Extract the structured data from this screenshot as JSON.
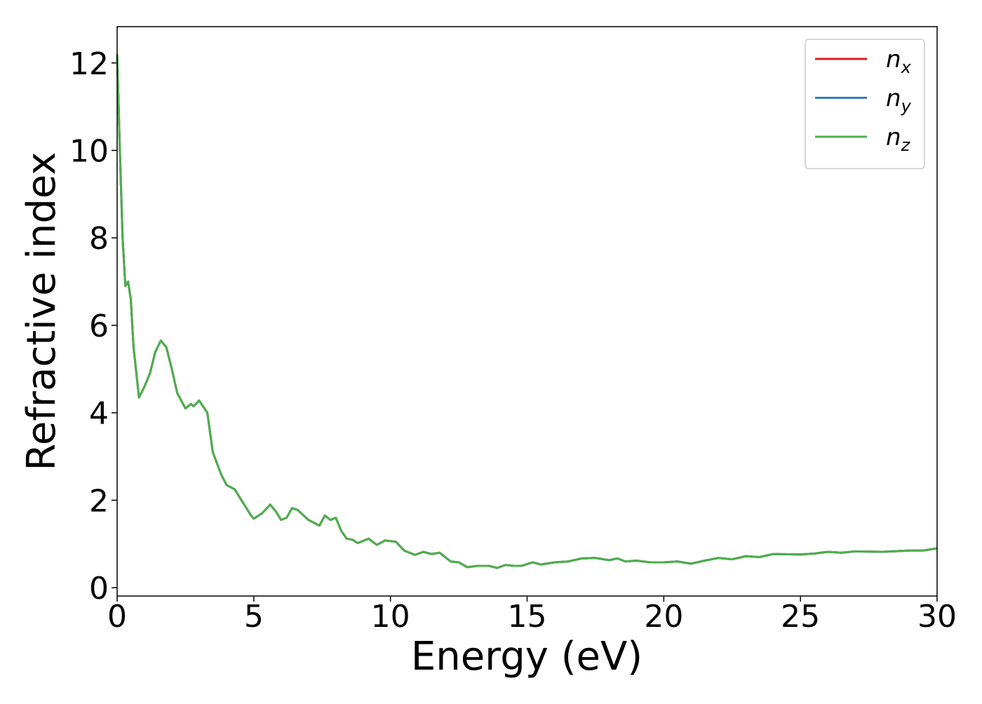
{
  "chart_data": {
    "type": "line",
    "xlabel": "Energy (eV)",
    "ylabel": "Refractive index",
    "x": [
      0,
      0.1,
      0.2,
      0.3,
      0.4,
      0.5,
      0.6,
      0.8,
      1.0,
      1.2,
      1.4,
      1.6,
      1.8,
      2.0,
      2.2,
      2.5,
      2.7,
      2.8,
      3.0,
      3.3,
      3.5,
      3.8,
      4.0,
      4.3,
      4.6,
      4.9,
      5.0,
      5.3,
      5.6,
      5.8,
      6.0,
      6.2,
      6.4,
      6.6,
      7.0,
      7.4,
      7.6,
      7.8,
      8.0,
      8.2,
      8.4,
      8.6,
      8.8,
      9.2,
      9.5,
      9.8,
      10.2,
      10.5,
      10.9,
      11.2,
      11.5,
      11.8,
      12.2,
      12.5,
      12.8,
      13.2,
      13.6,
      13.9,
      14.2,
      14.5,
      14.8,
      15.2,
      15.5,
      16.0,
      16.5,
      17.0,
      17.5,
      18.0,
      18.3,
      18.6,
      19.0,
      19.5,
      20.0,
      20.5,
      21.0,
      21.5,
      22.0,
      22.5,
      23.0,
      23.5,
      24.0,
      25.0,
      25.5,
      26.0,
      26.5,
      27.0,
      28.0,
      29.0,
      29.5,
      30.0
    ],
    "series": [
      {
        "name": "nx",
        "color": "#e41a1c",
        "values": [
          12.2,
          10,
          8,
          6.9,
          7.0,
          6.6,
          5.5,
          4.35,
          4.6,
          4.9,
          5.4,
          5.65,
          5.5,
          5.0,
          4.45,
          4.1,
          4.2,
          4.15,
          4.28,
          4.0,
          3.1,
          2.6,
          2.35,
          2.25,
          1.95,
          1.65,
          1.58,
          1.7,
          1.9,
          1.75,
          1.55,
          1.6,
          1.82,
          1.78,
          1.55,
          1.42,
          1.65,
          1.55,
          1.6,
          1.3,
          1.12,
          1.1,
          1.02,
          1.12,
          0.98,
          1.08,
          1.05,
          0.85,
          0.75,
          0.82,
          0.77,
          0.8,
          0.6,
          0.58,
          0.47,
          0.5,
          0.5,
          0.45,
          0.52,
          0.5,
          0.5,
          0.58,
          0.53,
          0.58,
          0.6,
          0.67,
          0.68,
          0.63,
          0.67,
          0.6,
          0.62,
          0.58,
          0.58,
          0.6,
          0.55,
          0.62,
          0.68,
          0.65,
          0.72,
          0.7,
          0.77,
          0.76,
          0.78,
          0.82,
          0.8,
          0.83,
          0.82,
          0.85,
          0.85,
          0.9
        ]
      },
      {
        "name": "ny",
        "color": "#377eb8",
        "values": [
          12.2,
          10,
          8,
          6.9,
          7.0,
          6.6,
          5.5,
          4.35,
          4.6,
          4.9,
          5.4,
          5.65,
          5.5,
          5.0,
          4.45,
          4.1,
          4.2,
          4.15,
          4.28,
          4.0,
          3.1,
          2.6,
          2.35,
          2.25,
          1.95,
          1.65,
          1.58,
          1.7,
          1.9,
          1.75,
          1.55,
          1.6,
          1.82,
          1.78,
          1.55,
          1.42,
          1.65,
          1.55,
          1.6,
          1.3,
          1.12,
          1.1,
          1.02,
          1.12,
          0.98,
          1.08,
          1.05,
          0.85,
          0.75,
          0.82,
          0.77,
          0.8,
          0.6,
          0.58,
          0.47,
          0.5,
          0.5,
          0.45,
          0.52,
          0.5,
          0.5,
          0.58,
          0.53,
          0.58,
          0.6,
          0.67,
          0.68,
          0.63,
          0.67,
          0.6,
          0.62,
          0.58,
          0.58,
          0.6,
          0.55,
          0.62,
          0.68,
          0.65,
          0.72,
          0.7,
          0.77,
          0.76,
          0.78,
          0.82,
          0.8,
          0.83,
          0.82,
          0.85,
          0.85,
          0.9
        ]
      },
      {
        "name": "nz",
        "color": "#4daf4a",
        "values": [
          12.2,
          10,
          8,
          6.9,
          7.0,
          6.6,
          5.5,
          4.35,
          4.6,
          4.9,
          5.4,
          5.65,
          5.5,
          5.0,
          4.45,
          4.1,
          4.2,
          4.15,
          4.28,
          4.0,
          3.1,
          2.6,
          2.35,
          2.25,
          1.95,
          1.65,
          1.58,
          1.7,
          1.9,
          1.75,
          1.55,
          1.6,
          1.82,
          1.78,
          1.55,
          1.42,
          1.65,
          1.55,
          1.6,
          1.3,
          1.12,
          1.1,
          1.02,
          1.12,
          0.98,
          1.08,
          1.05,
          0.85,
          0.75,
          0.82,
          0.77,
          0.8,
          0.6,
          0.58,
          0.47,
          0.5,
          0.5,
          0.45,
          0.52,
          0.5,
          0.5,
          0.58,
          0.53,
          0.58,
          0.6,
          0.67,
          0.68,
          0.63,
          0.67,
          0.6,
          0.62,
          0.58,
          0.58,
          0.6,
          0.55,
          0.62,
          0.68,
          0.65,
          0.72,
          0.7,
          0.77,
          0.76,
          0.78,
          0.82,
          0.8,
          0.83,
          0.82,
          0.85,
          0.85,
          0.9
        ]
      }
    ],
    "xlim": [
      0,
      30
    ],
    "xticks": [
      0,
      5,
      10,
      15,
      20,
      25,
      30
    ],
    "ylim": [
      -0.19,
      12.83
    ],
    "yticks": [
      0,
      2,
      4,
      6,
      8,
      10,
      12
    ],
    "grid": false,
    "legend": "upper right"
  }
}
